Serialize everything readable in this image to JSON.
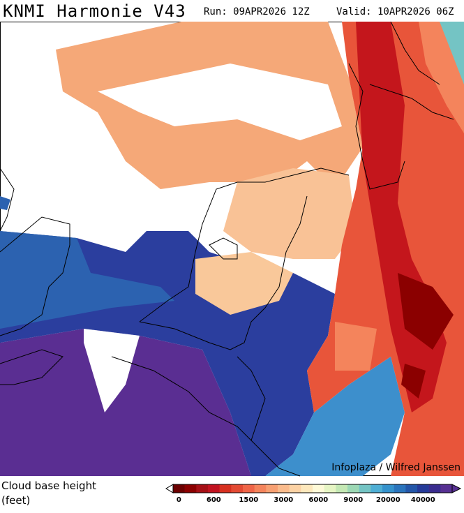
{
  "header": {
    "title": "KNMI Harmonie V43",
    "run": "Run: 09APR2026 12Z",
    "valid": "Valid: 10APR2026 06Z"
  },
  "map": {
    "credit": "Infoplaza / Wilfred Janssen"
  },
  "legend": {
    "label": "Cloud base height (feet)",
    "colors": [
      "#6b0000",
      "#8b0000",
      "#a50f15",
      "#c1121f",
      "#d7301f",
      "#e34a33",
      "#ef6548",
      "#f4845c",
      "#f7a072",
      "#fabb8c",
      "#fcd2a4",
      "#fde8bc",
      "#fefad8",
      "#e6f5c4",
      "#c4e8b4",
      "#9cd8b4",
      "#74c4c4",
      "#4eaed4",
      "#3592cc",
      "#2a74bc",
      "#2356a8",
      "#253a98",
      "#3a2c8e",
      "#573092"
    ],
    "ticks": [
      0,
      600,
      1500,
      3000,
      6000,
      9000,
      20000,
      40000
    ]
  }
}
